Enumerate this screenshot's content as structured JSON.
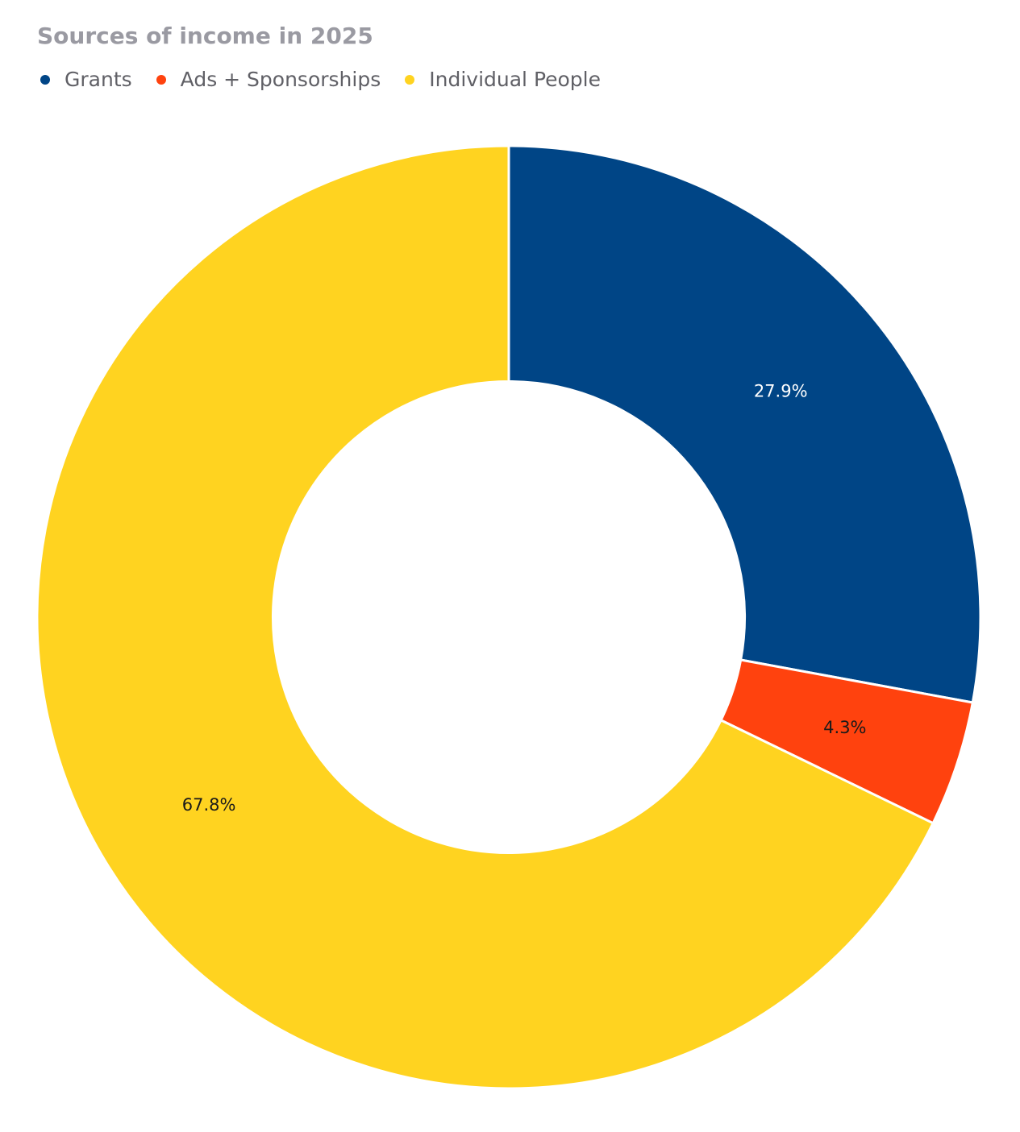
{
  "chart_data": {
    "type": "pie",
    "title": "Sources of income in 2025",
    "hole": 0.5,
    "legend": "top-left",
    "categories": [
      "Grants",
      "Ads + Sponsorships",
      "Individual People"
    ],
    "values": [
      27.9,
      4.3,
      67.8
    ],
    "labels": [
      "27.9%",
      "4.3%",
      "67.8%"
    ],
    "colors": [
      "#004586",
      "#ff420e",
      "#ffd320"
    ],
    "label_colors": [
      "#ffffff",
      "#1a1a1a",
      "#1a1a1a"
    ]
  }
}
